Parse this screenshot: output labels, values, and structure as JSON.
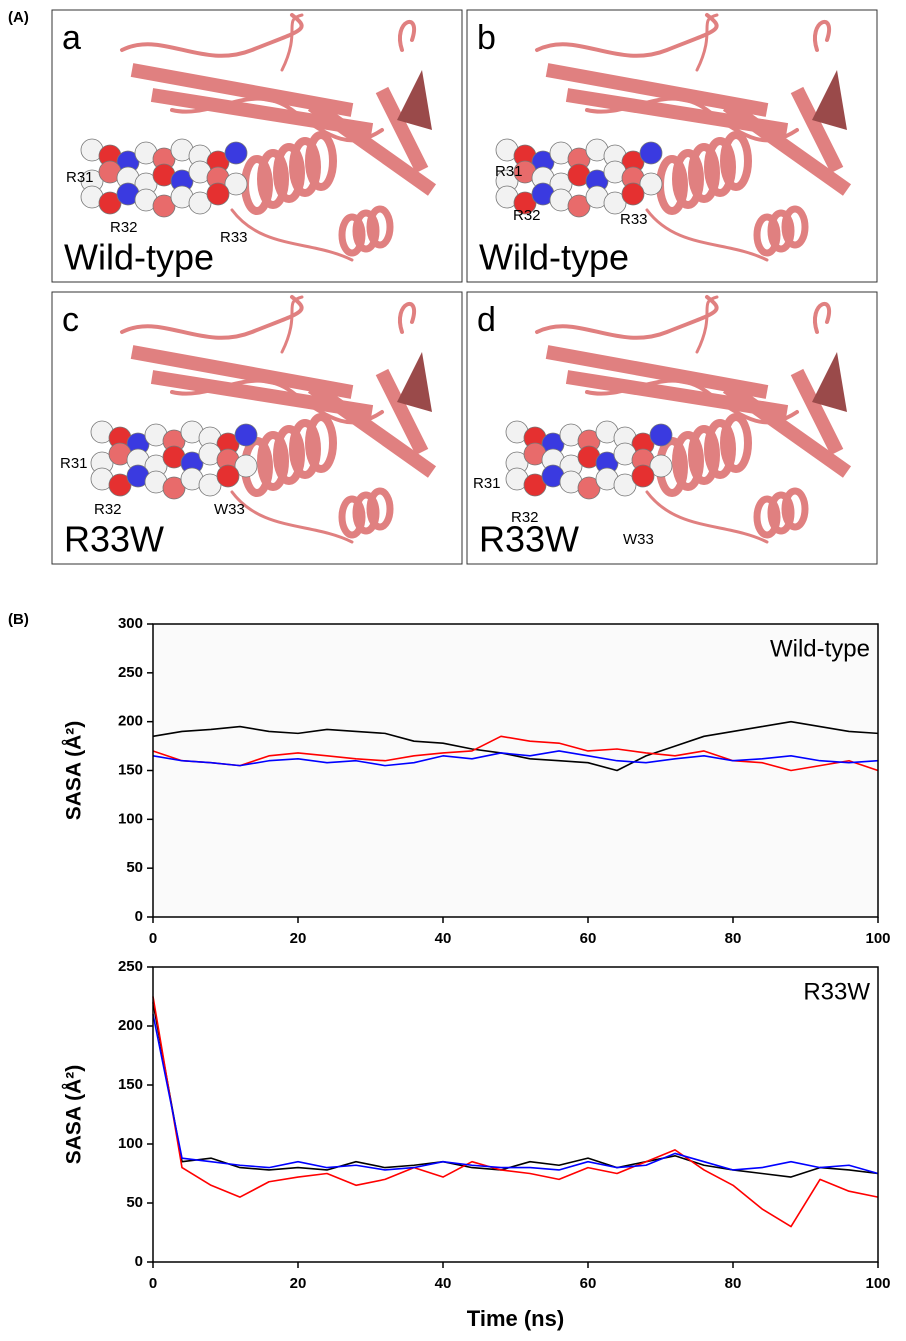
{
  "panel_a": {
    "label": "(A)",
    "panels": [
      {
        "letter": "a",
        "caption": "Wild-type",
        "residues": [
          "R31",
          "R32",
          "R33"
        ]
      },
      {
        "letter": "b",
        "caption": "Wild-type",
        "residues": [
          "R31",
          "R32",
          "R33"
        ]
      },
      {
        "letter": "c",
        "caption": "R33W",
        "residues": [
          "R31",
          "R32",
          "W33"
        ]
      },
      {
        "letter": "d",
        "caption": "R33W",
        "residues": [
          "R31",
          "R32",
          "W33"
        ]
      }
    ]
  },
  "panel_b": {
    "label": "(B)"
  },
  "chart_data": [
    {
      "type": "line",
      "annotation": "Wild-type",
      "y_label": "SASA (Å²)",
      "x": [
        0,
        4,
        8,
        12,
        16,
        20,
        24,
        28,
        32,
        36,
        40,
        44,
        48,
        52,
        56,
        60,
        64,
        68,
        72,
        76,
        80,
        84,
        88,
        92,
        96,
        100
      ],
      "series": [
        {
          "color": "#000000",
          "values": [
            185,
            190,
            192,
            195,
            190,
            188,
            192,
            190,
            188,
            180,
            178,
            172,
            168,
            162,
            160,
            158,
            150,
            165,
            175,
            185,
            190,
            195,
            200,
            195,
            190,
            188
          ]
        },
        {
          "color": "#ff0000",
          "values": [
            170,
            160,
            158,
            155,
            165,
            168,
            165,
            162,
            160,
            165,
            168,
            170,
            185,
            180,
            178,
            170,
            172,
            168,
            165,
            170,
            160,
            158,
            150,
            155,
            160,
            150
          ]
        },
        {
          "color": "#0000ff",
          "values": [
            165,
            160,
            158,
            155,
            160,
            162,
            158,
            160,
            155,
            158,
            165,
            162,
            168,
            165,
            170,
            165,
            160,
            158,
            162,
            165,
            160,
            162,
            165,
            160,
            158,
            160
          ]
        }
      ],
      "xlim": [
        0,
        100
      ],
      "xticks": [
        0,
        20,
        40,
        60,
        80,
        100
      ],
      "ylim": [
        0,
        300
      ],
      "yticks": [
        0,
        50,
        100,
        150,
        200,
        250,
        300
      ]
    },
    {
      "type": "line",
      "annotation": "R33W",
      "y_label": "SASA (Å²)",
      "x_label": "Time (ns)",
      "x": [
        0,
        4,
        8,
        12,
        16,
        20,
        24,
        28,
        32,
        36,
        40,
        44,
        48,
        52,
        56,
        60,
        64,
        68,
        72,
        76,
        80,
        84,
        88,
        92,
        96,
        100
      ],
      "series": [
        {
          "color": "#000000",
          "values": [
            220,
            85,
            88,
            80,
            78,
            80,
            78,
            85,
            80,
            82,
            85,
            80,
            78,
            85,
            82,
            88,
            80,
            85,
            90,
            82,
            78,
            75,
            72,
            80,
            78,
            75
          ]
        },
        {
          "color": "#ff0000",
          "values": [
            225,
            80,
            65,
            55,
            68,
            72,
            75,
            65,
            70,
            80,
            72,
            85,
            78,
            75,
            70,
            80,
            75,
            85,
            95,
            78,
            65,
            45,
            30,
            70,
            60,
            55
          ]
        },
        {
          "color": "#0000ff",
          "values": [
            210,
            88,
            85,
            82,
            80,
            85,
            80,
            82,
            78,
            80,
            85,
            82,
            80,
            80,
            78,
            85,
            80,
            82,
            92,
            85,
            78,
            80,
            85,
            80,
            82,
            75
          ]
        }
      ],
      "xlim": [
        0,
        100
      ],
      "xticks": [
        0,
        20,
        40,
        60,
        80,
        100
      ],
      "ylim": [
        0,
        250
      ],
      "yticks": [
        0,
        50,
        100,
        150,
        200,
        250
      ]
    }
  ]
}
